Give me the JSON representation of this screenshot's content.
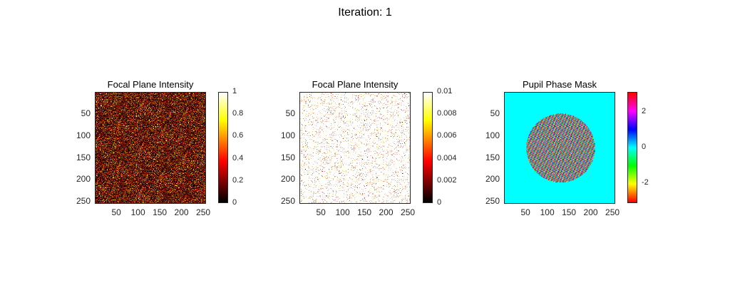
{
  "figure_title": "Iteration: 1",
  "chart_data": [
    {
      "type": "heatmap",
      "title": "Focal Plane Intensity",
      "colormap": "hot",
      "xlim": [
        0.5,
        256.5
      ],
      "ylim": [
        0.5,
        256.5
      ],
      "xticks": [
        "50",
        "100",
        "150",
        "200",
        "250"
      ],
      "yticks": [
        "50",
        "100",
        "150",
        "200",
        "250"
      ],
      "clim": [
        0,
        1
      ],
      "colorbar_ticks": [
        "0",
        "0.2",
        "0.4",
        "0.6",
        "0.8",
        "1"
      ],
      "content": "random speckle, mostly dark red values 0-0.3"
    },
    {
      "type": "heatmap",
      "title": "Focal Plane Intensity",
      "colormap": "hot",
      "xlim": [
        0.5,
        256.5
      ],
      "ylim": [
        0.5,
        256.5
      ],
      "xticks": [
        "50",
        "100",
        "150",
        "200",
        "250"
      ],
      "yticks": [
        "50",
        "100",
        "150",
        "200",
        "250"
      ],
      "clim": [
        0,
        0.01
      ],
      "colorbar_ticks": [
        "0",
        "0.002",
        "0.004",
        "0.006",
        "0.008",
        "0.01"
      ],
      "content": "saturated (white) with sparse low-value speckles"
    },
    {
      "type": "heatmap",
      "title": "Pupil Phase Mask",
      "colormap": "hsv",
      "xlim": [
        0.5,
        256.5
      ],
      "ylim": [
        0.5,
        256.5
      ],
      "xticks": [
        "50",
        "100",
        "150",
        "200",
        "250"
      ],
      "yticks": [
        "50",
        "100",
        "150",
        "200",
        "250"
      ],
      "clim": [
        -3.1416,
        3.1416
      ],
      "colorbar_ticks": [
        "-2",
        "0",
        "2"
      ],
      "colorbar_tick_values": [
        -2,
        0,
        2
      ],
      "pupil_center": [
        130,
        128
      ],
      "pupil_radius": 80,
      "content": "zero phase outside circular pupil, random phase inside"
    }
  ]
}
